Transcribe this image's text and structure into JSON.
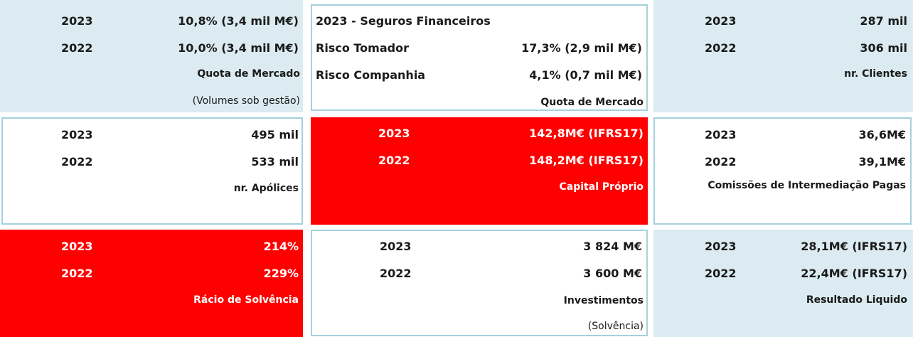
{
  "colors": {
    "light_blue": "#dbebf1",
    "red": "#ff0000",
    "border": "#a7d0dc"
  },
  "cards": {
    "quota_vida": {
      "rows": [
        {
          "year": "2023",
          "value": "10,8% (3,4 mil M€)"
        },
        {
          "year": "2022",
          "value": "10,0% (3,4 mil M€)"
        }
      ],
      "label": "Quota de Mercado",
      "note": "(Volumes sob gestão)"
    },
    "seguros_financeiros": {
      "title": "2023 - Seguros Financeiros",
      "rows": [
        {
          "name": "Risco Tomador",
          "value": "17,3% (2,9 mil M€)"
        },
        {
          "name": "Risco Companhia",
          "value": "4,1% (0,7 mil M€)"
        }
      ],
      "label": "Quota de Mercado"
    },
    "clientes": {
      "rows": [
        {
          "year": "2023",
          "value": "287 mil"
        },
        {
          "year": "2022",
          "value": "306 mil"
        }
      ],
      "label": "nr. Clientes"
    },
    "apolices": {
      "rows": [
        {
          "year": "2023",
          "value": "495 mil"
        },
        {
          "year": "2022",
          "value": "533 mil"
        }
      ],
      "label": "nr. Apólices"
    },
    "capital": {
      "rows": [
        {
          "year": "2023",
          "value": "142,8M€ (IFRS17)"
        },
        {
          "year": "2022",
          "value": "148,2M€ (IFRS17)"
        }
      ],
      "label": "Capital Próprio"
    },
    "comissoes": {
      "rows": [
        {
          "year": "2023",
          "value": "36,6M€"
        },
        {
          "year": "2022",
          "value": "39,1M€"
        }
      ],
      "label": "Comissões de Intermediação Pagas"
    },
    "solvencia": {
      "rows": [
        {
          "year": "2023",
          "value": "214%"
        },
        {
          "year": "2022",
          "value": "229%"
        }
      ],
      "label": "Rácio de Solvência"
    },
    "investimentos": {
      "rows": [
        {
          "year": "2023",
          "value": "3 824 M€"
        },
        {
          "year": "2022",
          "value": "3 600 M€"
        }
      ],
      "label": "Investimentos",
      "note": "(Solvência)"
    },
    "resultado": {
      "rows": [
        {
          "year": "2023",
          "value": "28,1M€ (IFRS17)"
        },
        {
          "year": "2022",
          "value": "22,4M€ (IFRS17)"
        }
      ],
      "label": "Resultado Liquido"
    }
  }
}
